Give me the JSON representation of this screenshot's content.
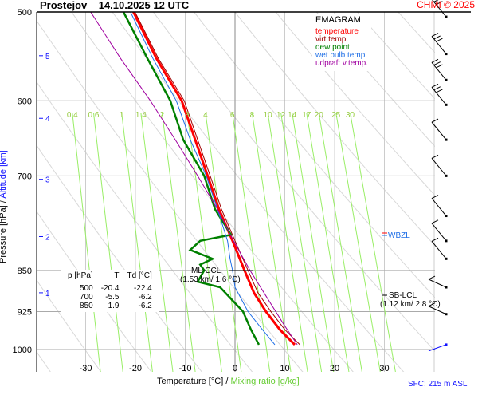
{
  "header": {
    "station": "Prostejov",
    "datetime": "14.10.2025 12 UTC",
    "copyright": "CHMI © 2025"
  },
  "legend": {
    "title": "EMAGRAM",
    "items": [
      {
        "label": "temperature",
        "color": "#ff0000"
      },
      {
        "label": "virt.temp.",
        "color": "#a00000"
      },
      {
        "label": "dew point",
        "color": "#008000"
      },
      {
        "label": "wet bulb temp.",
        "color": "#1e6ee6"
      },
      {
        "label": "udpraft v.temp.",
        "color": "#a000a0"
      }
    ]
  },
  "table": {
    "headers": [
      "p [hPa]",
      "T",
      "Td [°C]"
    ],
    "rows": [
      [
        "500",
        "-20.4",
        "-22.4"
      ],
      [
        "700",
        "-5.5",
        "-6.2"
      ],
      [
        "850",
        "1.9",
        "-6.2"
      ]
    ]
  },
  "annotations": {
    "ml_ccl": "ML-CCL",
    "ml_ccl_detail": "(1.53 km/ 1.6 °C)",
    "sb_lcl": "SB-LCL",
    "sb_lcl_detail": "(1.12 km/ 2.8 °C)",
    "wbzl": "WBZL",
    "sfc": "SFC: 215 m ASL"
  },
  "chart_data": {
    "type": "line",
    "xlabel": "Temperature [°C]",
    "xlabel_sep": "/",
    "xlabel2": "Mixing ratio [g/kg]",
    "ylabel": "Pressure [hPa]",
    "ylabel_sep": "/",
    "ylabel2": "Altitude [km]",
    "xlim": [
      -38,
      40
    ],
    "ylim": [
      1060,
      500
    ],
    "y_scale": "log",
    "x_ticks": [
      "-30",
      "-20",
      "-10",
      "0",
      "10",
      "20",
      "30"
    ],
    "y_ticks": [
      "500",
      "600",
      "700",
      "850",
      "925",
      "1000"
    ],
    "altitude_ticks": [
      {
        "km": "1",
        "p": 890
      },
      {
        "km": "2",
        "p": 793
      },
      {
        "km": "3",
        "p": 705
      },
      {
        "km": "4",
        "p": 622
      },
      {
        "km": "5",
        "p": 547
      }
    ],
    "mixing_ratio_labels": [
      "0.4",
      "0.6",
      "1",
      "1.4",
      "2",
      "3",
      "4",
      "6",
      "8",
      "10",
      "12",
      "14",
      "17",
      "20",
      "25",
      "30"
    ],
    "series": [
      {
        "name": "temperature",
        "color": "#ff0000",
        "points": [
          [
            500,
            -20.4
          ],
          [
            550,
            -15.8
          ],
          [
            600,
            -10.7
          ],
          [
            650,
            -8
          ],
          [
            700,
            -5.5
          ],
          [
            750,
            -3.2
          ],
          [
            800,
            -0.5
          ],
          [
            850,
            1.9
          ],
          [
            890,
            3.8
          ],
          [
            925,
            6.2
          ],
          [
            960,
            9
          ],
          [
            990,
            12
          ]
        ]
      },
      {
        "name": "virt.temp.",
        "color": "#a00000",
        "points": [
          [
            500,
            -20.1
          ],
          [
            550,
            -15.4
          ],
          [
            600,
            -10.2
          ],
          [
            650,
            -7.5
          ],
          [
            700,
            -5.0
          ],
          [
            750,
            -2.7
          ],
          [
            800,
            0
          ],
          [
            850,
            2.6
          ],
          [
            890,
            4.6
          ],
          [
            925,
            7.2
          ],
          [
            960,
            10
          ],
          [
            990,
            13
          ]
        ]
      },
      {
        "name": "dew point",
        "color": "#008000",
        "points": [
          [
            500,
            -22.4
          ],
          [
            550,
            -17.6
          ],
          [
            600,
            -13
          ],
          [
            650,
            -10.4
          ],
          [
            700,
            -6.2
          ],
          [
            750,
            -4
          ],
          [
            790,
            -0.8
          ],
          [
            800,
            -7
          ],
          [
            815,
            -9
          ],
          [
            830,
            -4.5
          ],
          [
            840,
            -7
          ],
          [
            850,
            -6.2
          ],
          [
            870,
            -7.5
          ],
          [
            880,
            -3
          ],
          [
            925,
            1.6
          ],
          [
            960,
            3.2
          ],
          [
            990,
            4.8
          ]
        ]
      },
      {
        "name": "wet bulb temp.",
        "color": "#1e6ee6",
        "points": [
          [
            500,
            -21
          ],
          [
            550,
            -16.5
          ],
          [
            600,
            -11.8
          ],
          [
            650,
            -9
          ],
          [
            700,
            -5.8
          ],
          [
            750,
            -3.5
          ],
          [
            800,
            -1.5
          ],
          [
            830,
            -1
          ],
          [
            850,
            -0.5
          ],
          [
            880,
            0
          ],
          [
            925,
            2.6
          ],
          [
            960,
            5.5
          ],
          [
            990,
            8
          ]
        ]
      },
      {
        "name": "udpraft v.temp.",
        "color": "#a000a0",
        "points": [
          [
            500,
            -29
          ],
          [
            550,
            -23
          ],
          [
            600,
            -17
          ],
          [
            650,
            -12
          ],
          [
            700,
            -7.5
          ],
          [
            750,
            -3.5
          ],
          [
            800,
            -0.3
          ],
          [
            850,
            3
          ],
          [
            900,
            6.5
          ],
          [
            950,
            9.8
          ],
          [
            990,
            12.5
          ]
        ]
      }
    ],
    "wind_barbs_hpa": [
      505,
      545,
      575,
      605,
      650,
      700,
      760,
      800,
      830,
      880,
      930,
      990
    ]
  }
}
